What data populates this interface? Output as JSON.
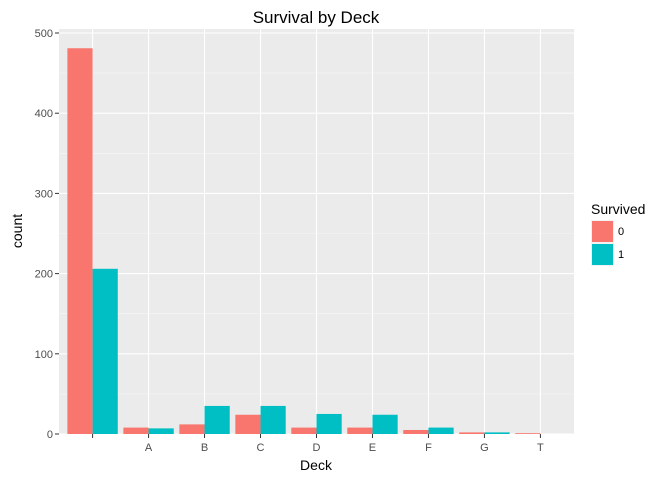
{
  "chart_data": {
    "type": "bar",
    "title": "Survival by Deck",
    "xlabel": "Deck",
    "ylabel": "count",
    "categories": [
      "",
      "A",
      "B",
      "C",
      "D",
      "E",
      "F",
      "G",
      "T"
    ],
    "series": [
      {
        "name": "0",
        "color": "#F8766D",
        "values": [
          481,
          8,
          12,
          24,
          8,
          8,
          5,
          2,
          1
        ]
      },
      {
        "name": "1",
        "color": "#00BFC4",
        "values": [
          206,
          7,
          35,
          35,
          25,
          24,
          8,
          2,
          0
        ]
      }
    ],
    "ylim": [
      0,
      505
    ],
    "yticks": [
      0,
      100,
      200,
      300,
      400,
      500
    ],
    "legend_title": "Survived",
    "legend_position": "right",
    "grid": true,
    "panel_background": "#EBEBEB"
  }
}
